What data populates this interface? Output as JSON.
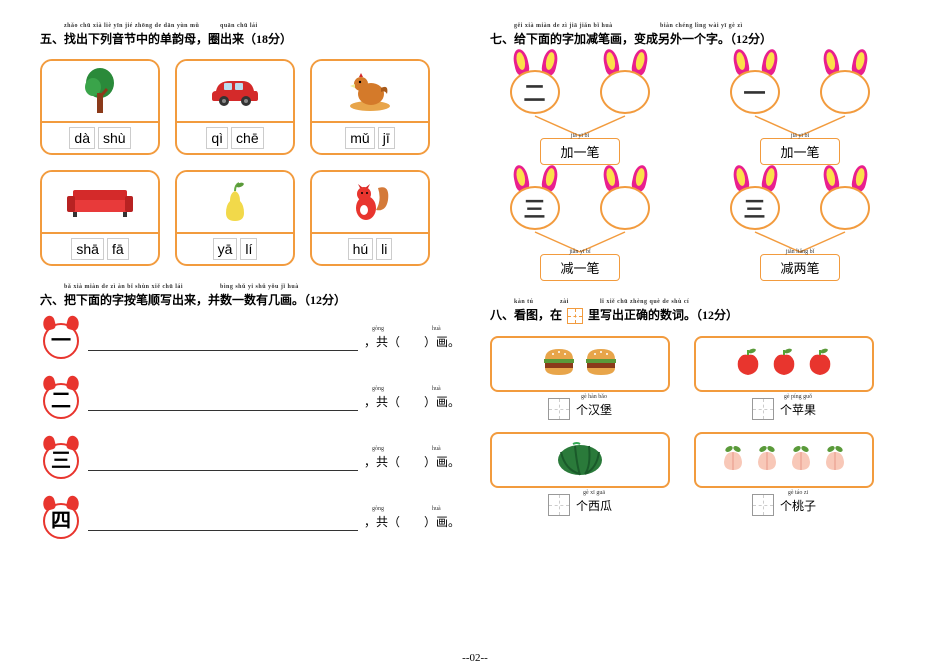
{
  "section5": {
    "title": "五、找出下列音节中的单韵母，圈出来（18分）",
    "ruby": "zhǎo chū xià liè yīn jié zhōng de dān yùn mǔ",
    "ruby2": "quān chū lái",
    "cards": [
      {
        "name": "tree",
        "syllables": [
          "dà",
          "shù"
        ]
      },
      {
        "name": "car",
        "syllables": [
          "qì",
          "chē"
        ]
      },
      {
        "name": "chicken",
        "syllables": [
          "mǔ",
          "jī"
        ]
      },
      {
        "name": "sofa",
        "syllables": [
          "shā",
          "fā"
        ]
      },
      {
        "name": "pear",
        "syllables": [
          "yā",
          "lí"
        ]
      },
      {
        "name": "squirrel",
        "syllables": [
          "hú",
          "li"
        ]
      }
    ]
  },
  "section6": {
    "title": "六、把下面的字按笔顺写出来，并数一数有几画。（12分）",
    "ruby": "bǎ xià miàn de zì àn bǐ shùn xiě chū lái",
    "ruby2": "bìng shǔ yi shǔ yǒu jǐ huà",
    "rows": [
      {
        "char": "一"
      },
      {
        "char": "二"
      },
      {
        "char": "三"
      },
      {
        "char": "四"
      }
    ],
    "gong": "共",
    "gong_ruby": "gòng",
    "hua": "画",
    "hua_ruby": "huà",
    "left_paren": "（",
    "right_paren": "）",
    "comma": "，",
    "period": "。"
  },
  "section7": {
    "title": "七、给下面的字加减笔画，变成另外一个字。（12分）",
    "ruby": "gěi xià miàn de zì jiā jiǎn bǐ huà",
    "ruby2": "biàn chéng lìng wài yī gè zì",
    "units": [
      {
        "char": "二",
        "label": "加一笔",
        "label_ruby": "jiā yī bǐ"
      },
      {
        "char": "一",
        "label": "加一笔",
        "label_ruby": "jiā yī bǐ"
      },
      {
        "char": "三",
        "label": "减一笔",
        "label_ruby": "jiǎn yī bǐ"
      },
      {
        "char": "三",
        "label": "减两笔",
        "label_ruby": "jiǎn liǎng bǐ"
      }
    ]
  },
  "section8": {
    "title_pre": "八、看图，在",
    "title_post": "里写出正确的数词。（12分）",
    "ruby": "kàn tú",
    "ruby_mid": "zài",
    "ruby2": "lǐ xiě chū zhèng què de shù cí",
    "items": [
      {
        "icon": "burger",
        "count": 2,
        "label": "个汉堡",
        "label_ruby": "gè hàn bǎo"
      },
      {
        "icon": "apple",
        "count": 3,
        "label": "个苹果",
        "label_ruby": "gè píng guǒ"
      },
      {
        "icon": "watermelon",
        "count": 1,
        "label": "个西瓜",
        "label_ruby": "gè xī guā"
      },
      {
        "icon": "peach",
        "count": 4,
        "label": "个桃子",
        "label_ruby": "gè táo zi"
      }
    ]
  },
  "page_num": "--02--",
  "colors": {
    "border": "#f29b3e",
    "red": "#e8352e",
    "pink": "#e91f8e",
    "yellow": "#fce04a"
  }
}
